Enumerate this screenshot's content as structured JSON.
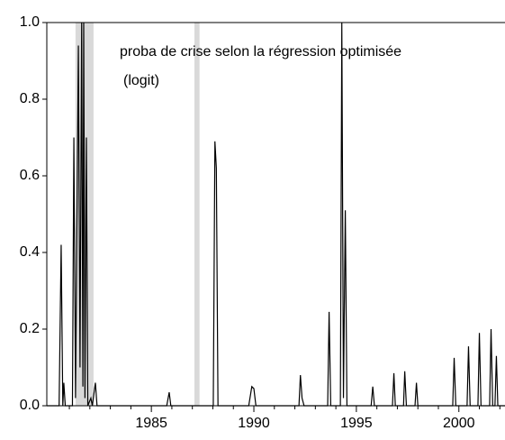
{
  "chart_data": {
    "type": "line",
    "annotation": [
      "proba de crise selon la régression optimisée",
      "(logit)"
    ],
    "x": [
      1979.9,
      1980.5,
      1980.6,
      1980.68,
      1980.73,
      1980.8,
      1981.15,
      1981.22,
      1981.3,
      1981.44,
      1981.52,
      1981.6,
      1981.66,
      1981.7,
      1981.76,
      1981.83,
      1981.9,
      1982.05,
      1982.12,
      1982.27,
      1982.35,
      1985.75,
      1985.87,
      1985.95,
      1988.02,
      1988.1,
      1988.17,
      1988.25,
      1989.75,
      1989.9,
      1990.0,
      1990.1,
      1992.2,
      1992.27,
      1992.35,
      1992.45,
      1993.6,
      1993.67,
      1993.75,
      1994.22,
      1994.29,
      1994.37,
      1994.46,
      1994.54,
      1995.72,
      1995.8,
      1995.88,
      1996.76,
      1996.83,
      1996.9,
      1997.3,
      1997.36,
      1997.44,
      1997.86,
      1997.93,
      1998.0,
      1999.7,
      1999.77,
      1999.85,
      2000.4,
      2000.47,
      2000.55,
      2000.93,
      2001.0,
      2001.08,
      2001.5,
      2001.57,
      2001.65,
      2001.76,
      2001.83,
      2001.9,
      2002.25
    ],
    "series": [
      {
        "color": "#000000",
        "values": [
          0,
          0,
          0.42,
          0,
          0.06,
          0,
          0,
          0.7,
          0.02,
          0.94,
          0.1,
          1.0,
          0.05,
          1.0,
          0.02,
          0.7,
          0,
          0.02,
          0,
          0.06,
          0,
          0,
          0.035,
          0,
          0,
          0.69,
          0.62,
          0,
          0,
          0.05,
          0.045,
          0,
          0,
          0.08,
          0.02,
          0,
          0,
          0.245,
          0,
          0,
          1.0,
          0.02,
          0.51,
          0,
          0,
          0.05,
          0,
          0,
          0.085,
          0,
          0,
          0.09,
          0,
          0,
          0.06,
          0,
          0,
          0.125,
          0,
          0,
          0.155,
          0,
          0,
          0.19,
          0,
          0,
          0.2,
          0,
          0,
          0.13,
          0,
          0
        ]
      }
    ],
    "shaded_regions": [
      [
        1981.3,
        1982.18
      ],
      [
        1987.1,
        1987.35
      ]
    ],
    "shade_color": "#d9d9d9",
    "xlim": [
      1979.9,
      2002.25
    ],
    "ylim": [
      0,
      1
    ],
    "xticks": [
      1985,
      1990,
      1995,
      2000
    ],
    "xminorticks": [
      1981,
      1982,
      1983,
      1984,
      1986,
      1987,
      1988,
      1989,
      1991,
      1992,
      1993,
      1994,
      1996,
      1997,
      1998,
      1999,
      2001,
      2002
    ],
    "yticks": [
      {
        "value": 0,
        "label": "0.0"
      },
      {
        "value": 0.2,
        "label": "0.2"
      },
      {
        "value": 0.4,
        "label": "0.4"
      },
      {
        "value": 0.6,
        "label": "0.6"
      },
      {
        "value": 0.8,
        "label": "0.8"
      },
      {
        "value": 1,
        "label": "1.0"
      }
    ]
  }
}
